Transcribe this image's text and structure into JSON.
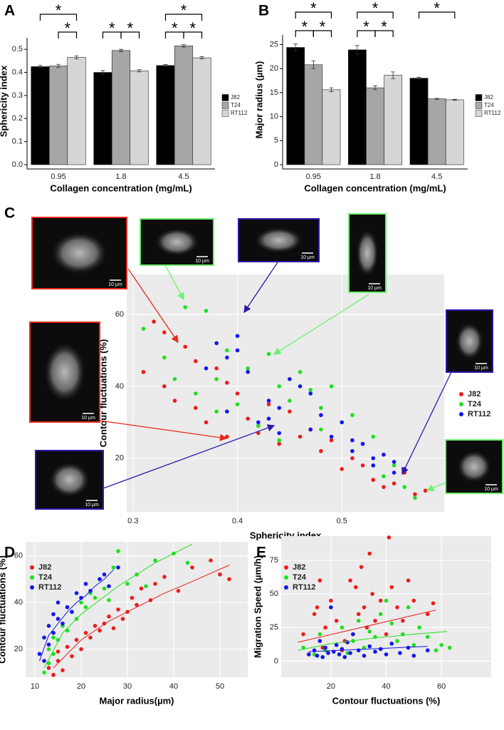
{
  "chart_data": [
    {
      "type": "bar",
      "panel": "A",
      "ylabel": "Sphericity index",
      "xlabel": "Collagen concentration (mg/mL)",
      "categories": [
        "0.95",
        "1.8",
        "4.5"
      ],
      "series": [
        {
          "name": "J82",
          "color": "#000000",
          "values": [
            0.425,
            0.4,
            0.43
          ],
          "errors": [
            0.005,
            0.008,
            0.004
          ]
        },
        {
          "name": "T24",
          "color": "#a6a6a6",
          "values": [
            0.428,
            0.495,
            0.515
          ],
          "errors": [
            0.007,
            0.005,
            0.005
          ]
        },
        {
          "name": "RT112",
          "color": "#d6d6d6",
          "values": [
            0.465,
            0.407,
            0.463
          ],
          "errors": [
            0.007,
            0.005,
            0.005
          ]
        }
      ],
      "ylim": [
        0,
        0.55
      ],
      "yticks": [
        {
          "value": 0,
          "label": "0.0"
        },
        0.1,
        0.2,
        0.3,
        0.4,
        0.5
      ],
      "annotations": [
        "*",
        "*",
        "*",
        "*",
        "*",
        "*",
        "*"
      ],
      "legend": "right"
    },
    {
      "type": "bar",
      "panel": "B",
      "ylabel": "Major radius (µm)",
      "xlabel": "Collagen concentration (mg/mL)",
      "categories": [
        "0.95",
        "1.8",
        "4.5"
      ],
      "series": [
        {
          "name": "J82",
          "color": "#000000",
          "values": [
            24.4,
            23.9,
            18.0
          ],
          "errors": [
            0.7,
            0.9,
            0.2
          ]
        },
        {
          "name": "T24",
          "color": "#a6a6a6",
          "values": [
            20.8,
            16.0,
            13.7
          ],
          "errors": [
            0.8,
            0.4,
            0.1
          ]
        },
        {
          "name": "RT112",
          "color": "#d6d6d6",
          "values": [
            15.6,
            18.6,
            13.5
          ],
          "errors": [
            0.4,
            0.7,
            0.1
          ]
        }
      ],
      "ylim": [
        0,
        27
      ],
      "yticks": [
        0,
        5,
        10,
        15,
        20,
        25
      ],
      "annotations": [
        "*",
        "*",
        "*",
        "*",
        "*",
        "*",
        "*"
      ],
      "legend": "right"
    },
    {
      "type": "scatter",
      "panel": "C",
      "ylabel": "Contour fluctuations (%)",
      "xlabel": "Sphericity index",
      "panel_background": "#ebebeb",
      "grid": true,
      "legend": "right",
      "xlim": [
        0.294,
        0.598
      ],
      "xticks": [
        0.3,
        0.4,
        0.5
      ],
      "ylim": [
        5.1,
        71.1
      ],
      "yticks": [
        20,
        40,
        60
      ],
      "scale_labels": [
        "10 µm",
        "10 µm",
        "10 µm",
        "10 µm",
        "10 µm",
        "10 µm",
        "10 µm",
        "10 µm"
      ],
      "series": [
        {
          "name": "J82",
          "color": "#ee1c1c",
          "x": [
            0.31,
            0.32,
            0.33,
            0.34,
            0.35,
            0.36,
            0.37,
            0.38,
            0.39,
            0.4,
            0.41,
            0.42,
            0.43,
            0.44,
            0.45,
            0.46,
            0.47,
            0.48,
            0.49,
            0.5,
            0.51,
            0.52,
            0.53,
            0.54,
            0.55,
            0.56,
            0.57,
            0.58,
            0.33,
            0.36,
            0.39,
            0.42
          ],
          "y": [
            44,
            58,
            40,
            36,
            51,
            34,
            30,
            45,
            26,
            38,
            31,
            27,
            35,
            24,
            33,
            26,
            28,
            22,
            25,
            17,
            20,
            18,
            14,
            12,
            13,
            16,
            10,
            11,
            55,
            47,
            41,
            29
          ]
        },
        {
          "name": "T24",
          "color": "#1fe01f",
          "x": [
            0.31,
            0.33,
            0.35,
            0.36,
            0.37,
            0.38,
            0.39,
            0.4,
            0.41,
            0.42,
            0.43,
            0.44,
            0.45,
            0.46,
            0.47,
            0.48,
            0.49,
            0.5,
            0.51,
            0.52,
            0.53,
            0.54,
            0.55,
            0.56,
            0.57,
            0.34,
            0.38,
            0.44,
            0.48,
            0.53
          ],
          "y": [
            56,
            48,
            62,
            38,
            61,
            42,
            50,
            35,
            45,
            29,
            49,
            40,
            36,
            44,
            39,
            34,
            40,
            30,
            32,
            24,
            26,
            15,
            18,
            12,
            9,
            42,
            33,
            25,
            28,
            18
          ]
        },
        {
          "name": "RT112",
          "color": "#1414ee",
          "x": [
            0.37,
            0.38,
            0.39,
            0.4,
            0.41,
            0.42,
            0.43,
            0.44,
            0.45,
            0.46,
            0.47,
            0.48,
            0.49,
            0.5,
            0.51,
            0.52,
            0.53,
            0.54,
            0.55,
            0.56,
            0.4,
            0.44,
            0.47,
            0.51,
            0.53,
            0.55,
            0.39,
            0.43
          ],
          "y": [
            45,
            52,
            48,
            54,
            44,
            30,
            36,
            34,
            42,
            40,
            28,
            32,
            26,
            30,
            22,
            24,
            20,
            21,
            19,
            17,
            50,
            27,
            38,
            25,
            18,
            16,
            33,
            31
          ]
        }
      ]
    },
    {
      "type": "scatter",
      "panel": "D",
      "ylabel": "Contour fluctuations (%)",
      "xlabel": "Major radius(µm)",
      "panel_background": "#ebebeb",
      "grid": true,
      "legend": "top-left",
      "xlim": [
        8,
        56
      ],
      "xticks": [
        10,
        20,
        30,
        40,
        50
      ],
      "ylim": [
        8,
        66
      ],
      "yticks": [
        20,
        40,
        60
      ],
      "series": [
        {
          "name": "J82",
          "color": "#ee1c1c",
          "x": [
            13,
            14,
            15,
            15,
            16,
            17,
            18,
            19,
            20,
            21,
            22,
            23,
            24,
            25,
            26,
            27,
            28,
            29,
            30,
            31,
            32,
            33,
            35,
            36,
            38,
            41,
            44,
            48,
            50,
            52
          ],
          "y": [
            12,
            9,
            15,
            19,
            11,
            21,
            17,
            24,
            20,
            27,
            25,
            30,
            28,
            31,
            34,
            29,
            37,
            33,
            36,
            42,
            39,
            46,
            41,
            48,
            51,
            45,
            55,
            58,
            52,
            50
          ]
        },
        {
          "name": "T24",
          "color": "#1fe01f",
          "x": [
            12,
            13,
            13,
            14,
            14,
            15,
            16,
            17,
            18,
            19,
            20,
            21,
            22,
            23,
            24,
            25,
            26,
            27,
            28,
            30,
            32,
            34,
            36,
            40,
            43
          ],
          "y": [
            10,
            14,
            20,
            18,
            25,
            24,
            30,
            28,
            36,
            33,
            40,
            38,
            44,
            42,
            50,
            46,
            41,
            55,
            62,
            48,
            52,
            47,
            58,
            61,
            57
          ]
        },
        {
          "name": "RT112",
          "color": "#1414ee",
          "x": [
            11,
            12,
            12,
            13,
            13,
            14,
            14,
            15,
            15,
            16,
            17,
            18,
            19,
            20,
            21,
            22,
            24,
            25,
            26,
            28
          ],
          "y": [
            18,
            15,
            25,
            22,
            30,
            27,
            35,
            33,
            40,
            31,
            38,
            36,
            44,
            42,
            48,
            45,
            50,
            52,
            47,
            55
          ]
        }
      ],
      "fits": [
        {
          "color": "#ee1c1c",
          "x": [
            14,
            20,
            26,
            32,
            38,
            44,
            52
          ],
          "y": [
            12,
            24,
            32,
            38,
            44,
            49,
            56
          ]
        },
        {
          "color": "#1fe01f",
          "x": [
            12,
            16,
            20,
            24,
            28,
            32,
            36,
            40,
            44
          ],
          "y": [
            12,
            27,
            35,
            41,
            47,
            52,
            57,
            61,
            65
          ]
        },
        {
          "color": "#1414ee",
          "x": [
            11,
            13,
            15,
            17,
            19,
            21,
            23,
            25,
            27
          ],
          "y": [
            15,
            26,
            31,
            36,
            40,
            43,
            47,
            50,
            54
          ]
        }
      ]
    },
    {
      "type": "scatter",
      "panel": "E",
      "ylabel": "Migration Speed (µm/h)",
      "xlabel": "Contour fluctuations (%)",
      "panel_background": "#ebebeb",
      "grid": true,
      "legend": "top-left",
      "xlim": [
        2,
        78
      ],
      "xticks": [
        20,
        40,
        60
      ],
      "ylim": [
        -12,
        93
      ],
      "yticks": [
        0,
        25,
        50,
        75
      ],
      "series": [
        {
          "name": "J82",
          "color": "#ee1c1c",
          "x": [
            10,
            12,
            14,
            15,
            16,
            17,
            18,
            20,
            22,
            24,
            25,
            27,
            28,
            29,
            30,
            31,
            32,
            33,
            34,
            35,
            36,
            38,
            40,
            41,
            42,
            44,
            46,
            48,
            50,
            55,
            57
          ],
          "y": [
            20,
            5,
            35,
            40,
            60,
            10,
            25,
            45,
            30,
            8,
            15,
            60,
            20,
            55,
            35,
            70,
            40,
            25,
            80,
            50,
            30,
            45,
            20,
            92,
            55,
            40,
            30,
            60,
            45,
            35,
            43
          ]
        },
        {
          "name": "T24",
          "color": "#1fe01f",
          "x": [
            10,
            14,
            16,
            18,
            20,
            22,
            24,
            26,
            28,
            30,
            32,
            34,
            36,
            38,
            40,
            42,
            44,
            46,
            48,
            50,
            52,
            55,
            58,
            60,
            63
          ],
          "y": [
            10,
            5,
            20,
            8,
            40,
            12,
            25,
            6,
            15,
            30,
            10,
            22,
            18,
            35,
            45,
            28,
            15,
            20,
            40,
            12,
            25,
            18,
            8,
            12,
            10
          ]
        },
        {
          "name": "RT112",
          "color": "#1414ee",
          "x": [
            12,
            14,
            15,
            16,
            17,
            18,
            19,
            20,
            21,
            22,
            23,
            24,
            25,
            26,
            27,
            28,
            30,
            32,
            34,
            36,
            38,
            40,
            42,
            45,
            48,
            50,
            55
          ],
          "y": [
            5,
            8,
            4,
            15,
            3,
            10,
            6,
            40,
            7,
            12,
            5,
            9,
            3,
            14,
            6,
            20,
            8,
            4,
            11,
            7,
            9,
            5,
            13,
            6,
            10,
            4,
            8
          ]
        }
      ],
      "fits": [
        {
          "color": "#ee1c1c",
          "x": [
            8,
            58
          ],
          "y": [
            14,
            38
          ]
        },
        {
          "color": "#1fe01f",
          "x": [
            8,
            20,
            35,
            50,
            62
          ],
          "y": [
            8,
            13,
            17,
            20,
            22
          ]
        },
        {
          "color": "#1414ee",
          "x": [
            12,
            55
          ],
          "y": [
            7,
            11
          ]
        }
      ]
    }
  ]
}
